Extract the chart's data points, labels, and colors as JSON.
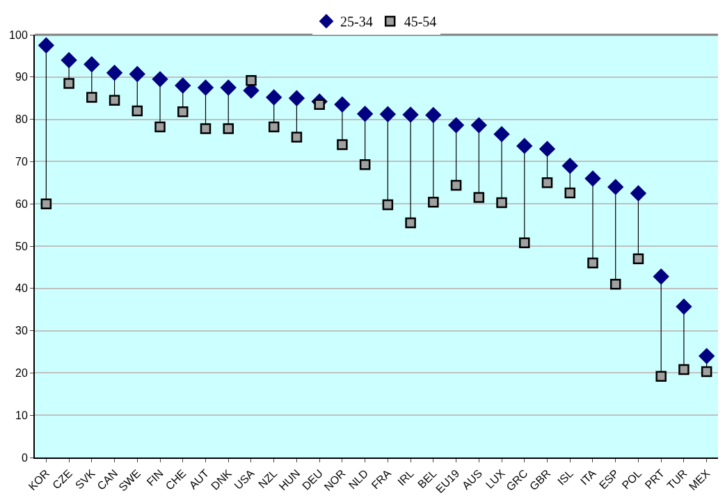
{
  "chart_data": {
    "type": "scatter",
    "categories": [
      "KOR",
      "CZE",
      "SVK",
      "CAN",
      "SWE",
      "FIN",
      "CHE",
      "AUT",
      "DNK",
      "USA",
      "NZL",
      "HUN",
      "DEU",
      "NOR",
      "NLD",
      "FRA",
      "IRL",
      "BEL",
      "EU19",
      "AUS",
      "LUX",
      "GRC",
      "GBR",
      "ISL",
      "ITA",
      "ESP",
      "POL",
      "PRT",
      "TUR",
      "MEX"
    ],
    "series": [
      {
        "name": "25-34",
        "color": "#000080",
        "marker": "diamond",
        "values": [
          97.5,
          94,
          93,
          91,
          90.7,
          89.5,
          88,
          87.5,
          87.5,
          86.8,
          85.2,
          85,
          84.2,
          83.5,
          81.3,
          81.2,
          81.1,
          81,
          78.6,
          78.6,
          76.5,
          73.7,
          73,
          69,
          66,
          64,
          62.5,
          42.8,
          35.7,
          24
        ]
      },
      {
        "name": "45-54",
        "color": "#a0a0a0",
        "marker": "square",
        "values": [
          60,
          88.5,
          85.2,
          84.5,
          82,
          78.2,
          81.8,
          77.8,
          77.8,
          89.2,
          78.2,
          75.8,
          83.5,
          74,
          69.3,
          59.8,
          55.5,
          60.4,
          64.4,
          61.5,
          60.3,
          50.8,
          65,
          62.6,
          46,
          41,
          47,
          19.2,
          20.8,
          20.3
        ]
      }
    ],
    "ylim": [
      0,
      100
    ],
    "yticks": [
      0,
      10,
      20,
      30,
      40,
      50,
      60,
      70,
      80,
      90,
      100
    ],
    "grid": "y",
    "legend": "top"
  }
}
